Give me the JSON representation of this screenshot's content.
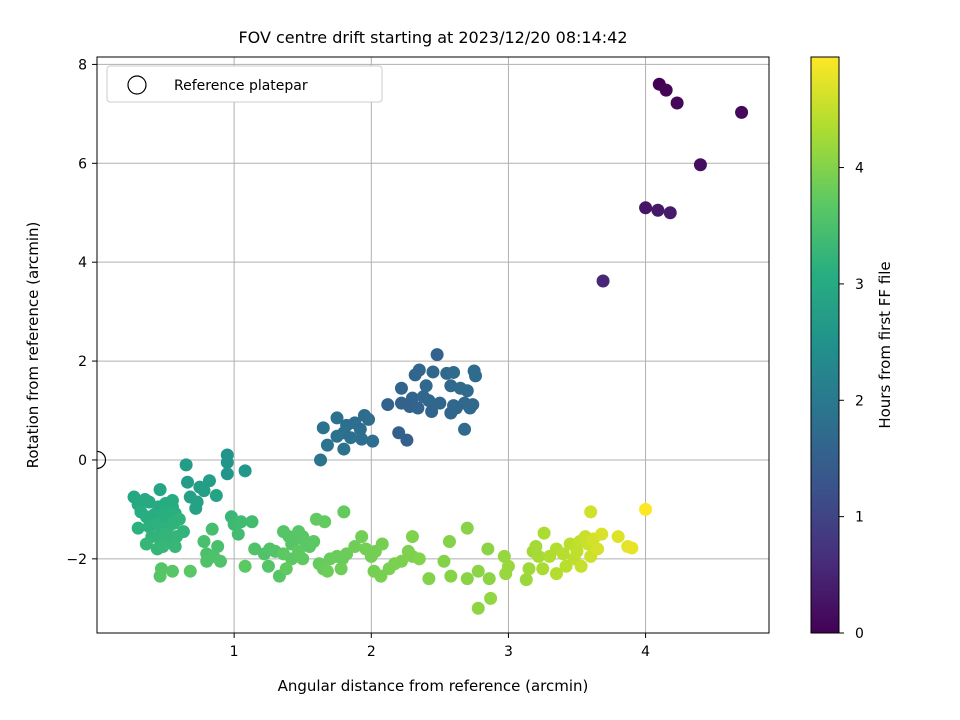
{
  "chart_data": {
    "type": "scatter",
    "title": "FOV centre drift starting at 2023/12/20 08:14:42",
    "xlabel": "Angular distance from reference (arcmin)",
    "ylabel": "Rotation from reference (arcmin)",
    "xlim": [
      0.0,
      4.9
    ],
    "ylim": [
      -3.5,
      8.15
    ],
    "xticks": [
      1,
      2,
      3,
      4
    ],
    "yticks": [
      -2,
      0,
      2,
      4,
      6,
      8
    ],
    "grid": true,
    "legend": {
      "position": "top-left",
      "entries": [
        "Reference platepar"
      ]
    },
    "reference_point": {
      "x": 0.0,
      "y": 0.0,
      "label": "Reference platepar"
    },
    "colorbar": {
      "label": "Hours from first FF file",
      "min": 0,
      "max": 4.95,
      "ticks": [
        0,
        1,
        2,
        3,
        4
      ],
      "colormap": "viridis"
    },
    "points": [
      {
        "x": 4.1,
        "y": 7.6,
        "c": 0.02
      },
      {
        "x": 4.15,
        "y": 7.48,
        "c": 0.05
      },
      {
        "x": 4.23,
        "y": 7.22,
        "c": 0.08
      },
      {
        "x": 4.7,
        "y": 7.03,
        "c": 0.12
      },
      {
        "x": 4.4,
        "y": 5.97,
        "c": 0.2
      },
      {
        "x": 4.0,
        "y": 5.1,
        "c": 0.3
      },
      {
        "x": 4.09,
        "y": 5.05,
        "c": 0.33
      },
      {
        "x": 4.18,
        "y": 5.0,
        "c": 0.36
      },
      {
        "x": 3.69,
        "y": 3.62,
        "c": 0.55
      },
      {
        "x": 2.48,
        "y": 2.13,
        "c": 1.55
      },
      {
        "x": 2.32,
        "y": 1.72,
        "c": 1.6
      },
      {
        "x": 2.35,
        "y": 1.82,
        "c": 1.62
      },
      {
        "x": 2.45,
        "y": 1.78,
        "c": 1.65
      },
      {
        "x": 2.55,
        "y": 1.75,
        "c": 1.67
      },
      {
        "x": 2.6,
        "y": 1.77,
        "c": 1.7
      },
      {
        "x": 2.75,
        "y": 1.8,
        "c": 1.72
      },
      {
        "x": 2.76,
        "y": 1.7,
        "c": 1.73
      },
      {
        "x": 2.4,
        "y": 1.5,
        "c": 1.68
      },
      {
        "x": 2.58,
        "y": 1.5,
        "c": 1.69
      },
      {
        "x": 2.65,
        "y": 1.45,
        "c": 1.7
      },
      {
        "x": 2.7,
        "y": 1.4,
        "c": 1.71
      },
      {
        "x": 2.22,
        "y": 1.45,
        "c": 1.58
      },
      {
        "x": 2.3,
        "y": 1.25,
        "c": 1.6
      },
      {
        "x": 2.38,
        "y": 1.28,
        "c": 1.62
      },
      {
        "x": 2.42,
        "y": 1.2,
        "c": 1.63
      },
      {
        "x": 2.5,
        "y": 1.15,
        "c": 1.64
      },
      {
        "x": 2.6,
        "y": 1.1,
        "c": 1.66
      },
      {
        "x": 2.68,
        "y": 1.15,
        "c": 1.68
      },
      {
        "x": 2.74,
        "y": 1.12,
        "c": 1.7
      },
      {
        "x": 2.12,
        "y": 1.12,
        "c": 1.55
      },
      {
        "x": 2.22,
        "y": 1.15,
        "c": 1.56
      },
      {
        "x": 2.28,
        "y": 1.08,
        "c": 1.57
      },
      {
        "x": 2.34,
        "y": 1.05,
        "c": 1.58
      },
      {
        "x": 2.44,
        "y": 0.98,
        "c": 1.6
      },
      {
        "x": 2.58,
        "y": 0.95,
        "c": 1.62
      },
      {
        "x": 2.62,
        "y": 1.05,
        "c": 1.64
      },
      {
        "x": 2.72,
        "y": 1.05,
        "c": 1.66
      },
      {
        "x": 2.68,
        "y": 0.62,
        "c": 1.7
      },
      {
        "x": 2.2,
        "y": 0.55,
        "c": 1.52
      },
      {
        "x": 2.26,
        "y": 0.4,
        "c": 1.5
      },
      {
        "x": 1.65,
        "y": 0.65,
        "c": 1.85
      },
      {
        "x": 1.75,
        "y": 0.85,
        "c": 1.85
      },
      {
        "x": 1.82,
        "y": 0.7,
        "c": 1.8
      },
      {
        "x": 1.88,
        "y": 0.75,
        "c": 1.78
      },
      {
        "x": 1.95,
        "y": 0.9,
        "c": 1.75
      },
      {
        "x": 1.98,
        "y": 0.82,
        "c": 1.75
      },
      {
        "x": 1.92,
        "y": 0.62,
        "c": 1.78
      },
      {
        "x": 1.8,
        "y": 0.55,
        "c": 1.82
      },
      {
        "x": 1.75,
        "y": 0.48,
        "c": 1.84
      },
      {
        "x": 1.85,
        "y": 0.45,
        "c": 1.82
      },
      {
        "x": 1.93,
        "y": 0.42,
        "c": 1.8
      },
      {
        "x": 2.01,
        "y": 0.38,
        "c": 1.78
      },
      {
        "x": 1.68,
        "y": 0.3,
        "c": 1.88
      },
      {
        "x": 1.8,
        "y": 0.22,
        "c": 1.86
      },
      {
        "x": 1.63,
        "y": 0.0,
        "c": 1.9
      },
      {
        "x": 0.95,
        "y": 0.1,
        "c": 2.55
      },
      {
        "x": 0.95,
        "y": -0.05,
        "c": 2.55
      },
      {
        "x": 0.95,
        "y": -0.28,
        "c": 2.58
      },
      {
        "x": 1.08,
        "y": -0.22,
        "c": 2.6
      },
      {
        "x": 0.65,
        "y": -0.1,
        "c": 2.7
      },
      {
        "x": 0.66,
        "y": -0.45,
        "c": 2.72
      },
      {
        "x": 0.75,
        "y": -0.55,
        "c": 2.74
      },
      {
        "x": 0.82,
        "y": -0.42,
        "c": 2.76
      },
      {
        "x": 0.78,
        "y": -0.62,
        "c": 2.78
      },
      {
        "x": 0.68,
        "y": -0.75,
        "c": 2.8
      },
      {
        "x": 0.73,
        "y": -0.85,
        "c": 2.82
      },
      {
        "x": 0.72,
        "y": -0.98,
        "c": 2.84
      },
      {
        "x": 0.87,
        "y": -0.72,
        "c": 2.86
      },
      {
        "x": 0.46,
        "y": -0.6,
        "c": 2.9
      },
      {
        "x": 0.27,
        "y": -0.75,
        "c": 2.95
      },
      {
        "x": 0.3,
        "y": -0.9,
        "c": 2.97
      },
      {
        "x": 0.35,
        "y": -0.8,
        "c": 2.98
      },
      {
        "x": 0.38,
        "y": -0.85,
        "c": 3.0
      },
      {
        "x": 0.45,
        "y": -0.95,
        "c": 3.0
      },
      {
        "x": 0.5,
        "y": -0.88,
        "c": 3.02
      },
      {
        "x": 0.55,
        "y": -0.82,
        "c": 3.03
      },
      {
        "x": 0.55,
        "y": -0.95,
        "c": 3.04
      },
      {
        "x": 0.32,
        "y": -1.05,
        "c": 3.05
      },
      {
        "x": 0.36,
        "y": -1.15,
        "c": 3.06
      },
      {
        "x": 0.4,
        "y": -1.2,
        "c": 3.07
      },
      {
        "x": 0.42,
        "y": -1.1,
        "c": 3.08
      },
      {
        "x": 0.48,
        "y": -1.15,
        "c": 3.09
      },
      {
        "x": 0.5,
        "y": -1.05,
        "c": 3.1
      },
      {
        "x": 0.53,
        "y": -1.2,
        "c": 3.11
      },
      {
        "x": 0.57,
        "y": -1.08,
        "c": 3.12
      },
      {
        "x": 0.3,
        "y": -1.38,
        "c": 3.13
      },
      {
        "x": 0.38,
        "y": -1.35,
        "c": 3.14
      },
      {
        "x": 0.43,
        "y": -1.3,
        "c": 3.15
      },
      {
        "x": 0.47,
        "y": -1.4,
        "c": 3.16
      },
      {
        "x": 0.52,
        "y": -1.35,
        "c": 3.17
      },
      {
        "x": 0.56,
        "y": -1.28,
        "c": 3.18
      },
      {
        "x": 0.6,
        "y": -1.2,
        "c": 3.19
      },
      {
        "x": 0.63,
        "y": -1.45,
        "c": 3.2
      },
      {
        "x": 0.4,
        "y": -1.55,
        "c": 3.2
      },
      {
        "x": 0.46,
        "y": -1.6,
        "c": 3.21
      },
      {
        "x": 0.5,
        "y": -1.5,
        "c": 3.22
      },
      {
        "x": 0.55,
        "y": -1.6,
        "c": 3.23
      },
      {
        "x": 0.58,
        "y": -1.55,
        "c": 3.24
      },
      {
        "x": 0.36,
        "y": -1.7,
        "c": 3.25
      },
      {
        "x": 0.44,
        "y": -1.8,
        "c": 3.26
      },
      {
        "x": 0.48,
        "y": -1.75,
        "c": 3.27
      },
      {
        "x": 0.57,
        "y": -1.75,
        "c": 3.28
      },
      {
        "x": 0.98,
        "y": -1.15,
        "c": 3.3
      },
      {
        "x": 1.0,
        "y": -1.3,
        "c": 3.35
      },
      {
        "x": 1.05,
        "y": -1.25,
        "c": 3.38
      },
      {
        "x": 1.03,
        "y": -1.5,
        "c": 3.4
      },
      {
        "x": 1.13,
        "y": -1.25,
        "c": 3.42
      },
      {
        "x": 0.84,
        "y": -1.4,
        "c": 3.45
      },
      {
        "x": 0.78,
        "y": -1.65,
        "c": 3.48
      },
      {
        "x": 0.88,
        "y": -1.75,
        "c": 3.5
      },
      {
        "x": 0.8,
        "y": -1.9,
        "c": 3.5
      },
      {
        "x": 0.85,
        "y": -1.95,
        "c": 3.52
      },
      {
        "x": 0.8,
        "y": -2.05,
        "c": 3.53
      },
      {
        "x": 0.9,
        "y": -2.05,
        "c": 3.55
      },
      {
        "x": 0.47,
        "y": -2.2,
        "c": 3.6
      },
      {
        "x": 0.46,
        "y": -2.35,
        "c": 3.62
      },
      {
        "x": 0.55,
        "y": -2.25,
        "c": 3.64
      },
      {
        "x": 0.68,
        "y": -2.25,
        "c": 3.66
      },
      {
        "x": 1.08,
        "y": -2.15,
        "c": 3.68
      },
      {
        "x": 1.15,
        "y": -1.8,
        "c": 3.55
      },
      {
        "x": 1.22,
        "y": -1.9,
        "c": 3.56
      },
      {
        "x": 1.26,
        "y": -1.8,
        "c": 3.57
      },
      {
        "x": 1.3,
        "y": -1.85,
        "c": 3.58
      },
      {
        "x": 1.25,
        "y": -2.15,
        "c": 3.6
      },
      {
        "x": 1.33,
        "y": -2.35,
        "c": 3.62
      },
      {
        "x": 1.36,
        "y": -1.45,
        "c": 3.6
      },
      {
        "x": 1.4,
        "y": -1.55,
        "c": 3.61
      },
      {
        "x": 1.42,
        "y": -1.7,
        "c": 3.62
      },
      {
        "x": 1.45,
        "y": -1.6,
        "c": 3.63
      },
      {
        "x": 1.47,
        "y": -1.45,
        "c": 3.64
      },
      {
        "x": 1.5,
        "y": -1.55,
        "c": 3.65
      },
      {
        "x": 1.52,
        "y": -1.65,
        "c": 3.66
      },
      {
        "x": 1.55,
        "y": -1.75,
        "c": 3.67
      },
      {
        "x": 1.58,
        "y": -1.65,
        "c": 3.68
      },
      {
        "x": 1.36,
        "y": -1.9,
        "c": 3.69
      },
      {
        "x": 1.42,
        "y": -2.0,
        "c": 3.7
      },
      {
        "x": 1.47,
        "y": -1.85,
        "c": 3.71
      },
      {
        "x": 1.5,
        "y": -2.0,
        "c": 3.72
      },
      {
        "x": 1.38,
        "y": -2.2,
        "c": 3.73
      },
      {
        "x": 1.6,
        "y": -1.2,
        "c": 3.74
      },
      {
        "x": 1.66,
        "y": -1.25,
        "c": 3.75
      },
      {
        "x": 1.8,
        "y": -1.05,
        "c": 3.76
      },
      {
        "x": 1.62,
        "y": -2.1,
        "c": 3.77
      },
      {
        "x": 1.65,
        "y": -2.2,
        "c": 3.78
      },
      {
        "x": 1.7,
        "y": -2.0,
        "c": 3.79
      },
      {
        "x": 1.75,
        "y": -1.95,
        "c": 3.8
      },
      {
        "x": 1.79,
        "y": -2.0,
        "c": 3.81
      },
      {
        "x": 1.82,
        "y": -1.9,
        "c": 3.82
      },
      {
        "x": 1.68,
        "y": -2.25,
        "c": 3.83
      },
      {
        "x": 1.78,
        "y": -2.2,
        "c": 3.84
      },
      {
        "x": 1.88,
        "y": -1.75,
        "c": 3.85
      },
      {
        "x": 1.93,
        "y": -1.55,
        "c": 3.86
      },
      {
        "x": 1.96,
        "y": -1.8,
        "c": 3.87
      },
      {
        "x": 2.0,
        "y": -1.95,
        "c": 3.88
      },
      {
        "x": 2.03,
        "y": -1.85,
        "c": 3.89
      },
      {
        "x": 2.08,
        "y": -1.7,
        "c": 3.9
      },
      {
        "x": 2.02,
        "y": -2.25,
        "c": 3.91
      },
      {
        "x": 2.07,
        "y": -2.35,
        "c": 3.92
      },
      {
        "x": 2.13,
        "y": -2.2,
        "c": 3.93
      },
      {
        "x": 2.17,
        "y": -2.1,
        "c": 3.94
      },
      {
        "x": 2.22,
        "y": -2.05,
        "c": 3.95
      },
      {
        "x": 2.27,
        "y": -1.85,
        "c": 3.96
      },
      {
        "x": 2.3,
        "y": -1.95,
        "c": 3.97
      },
      {
        "x": 2.3,
        "y": -1.55,
        "c": 3.98
      },
      {
        "x": 2.35,
        "y": -2.0,
        "c": 3.99
      },
      {
        "x": 2.42,
        "y": -2.4,
        "c": 4.0
      },
      {
        "x": 2.53,
        "y": -2.05,
        "c": 4.01
      },
      {
        "x": 2.57,
        "y": -1.65,
        "c": 4.02
      },
      {
        "x": 2.58,
        "y": -2.35,
        "c": 4.03
      },
      {
        "x": 2.7,
        "y": -1.38,
        "c": 4.04
      },
      {
        "x": 2.7,
        "y": -2.4,
        "c": 4.05
      },
      {
        "x": 2.78,
        "y": -2.25,
        "c": 4.06
      },
      {
        "x": 2.85,
        "y": -1.8,
        "c": 4.07
      },
      {
        "x": 2.86,
        "y": -2.4,
        "c": 4.08
      },
      {
        "x": 2.78,
        "y": -3.0,
        "c": 4.1
      },
      {
        "x": 2.87,
        "y": -2.8,
        "c": 4.12
      },
      {
        "x": 2.97,
        "y": -1.95,
        "c": 4.15
      },
      {
        "x": 2.98,
        "y": -2.3,
        "c": 4.17
      },
      {
        "x": 3.0,
        "y": -2.15,
        "c": 4.18
      },
      {
        "x": 3.13,
        "y": -2.42,
        "c": 4.2
      },
      {
        "x": 3.15,
        "y": -2.2,
        "c": 4.22
      },
      {
        "x": 3.18,
        "y": -1.85,
        "c": 4.24
      },
      {
        "x": 3.2,
        "y": -1.75,
        "c": 4.26
      },
      {
        "x": 3.22,
        "y": -1.95,
        "c": 4.28
      },
      {
        "x": 3.25,
        "y": -2.2,
        "c": 4.3
      },
      {
        "x": 3.26,
        "y": -1.48,
        "c": 4.32
      },
      {
        "x": 3.3,
        "y": -1.95,
        "c": 4.34
      },
      {
        "x": 3.35,
        "y": -1.8,
        "c": 4.36
      },
      {
        "x": 3.35,
        "y": -2.3,
        "c": 4.38
      },
      {
        "x": 3.4,
        "y": -1.9,
        "c": 4.4
      },
      {
        "x": 3.42,
        "y": -2.15,
        "c": 4.42
      },
      {
        "x": 3.45,
        "y": -1.7,
        "c": 4.44
      },
      {
        "x": 3.48,
        "y": -2.0,
        "c": 4.46
      },
      {
        "x": 3.5,
        "y": -1.85,
        "c": 4.48
      },
      {
        "x": 3.52,
        "y": -1.65,
        "c": 4.5
      },
      {
        "x": 3.53,
        "y": -2.15,
        "c": 4.52
      },
      {
        "x": 3.56,
        "y": -1.55,
        "c": 4.54
      },
      {
        "x": 3.58,
        "y": -1.7,
        "c": 4.56
      },
      {
        "x": 3.6,
        "y": -1.95,
        "c": 4.58
      },
      {
        "x": 3.6,
        "y": -1.05,
        "c": 4.6
      },
      {
        "x": 3.62,
        "y": -1.6,
        "c": 4.62
      },
      {
        "x": 3.65,
        "y": -1.8,
        "c": 4.64
      },
      {
        "x": 3.68,
        "y": -1.5,
        "c": 4.66
      },
      {
        "x": 3.8,
        "y": -1.55,
        "c": 4.7
      },
      {
        "x": 3.87,
        "y": -1.75,
        "c": 4.75
      },
      {
        "x": 3.9,
        "y": -1.78,
        "c": 4.78
      },
      {
        "x": 4.0,
        "y": -1.0,
        "c": 4.95
      }
    ]
  }
}
